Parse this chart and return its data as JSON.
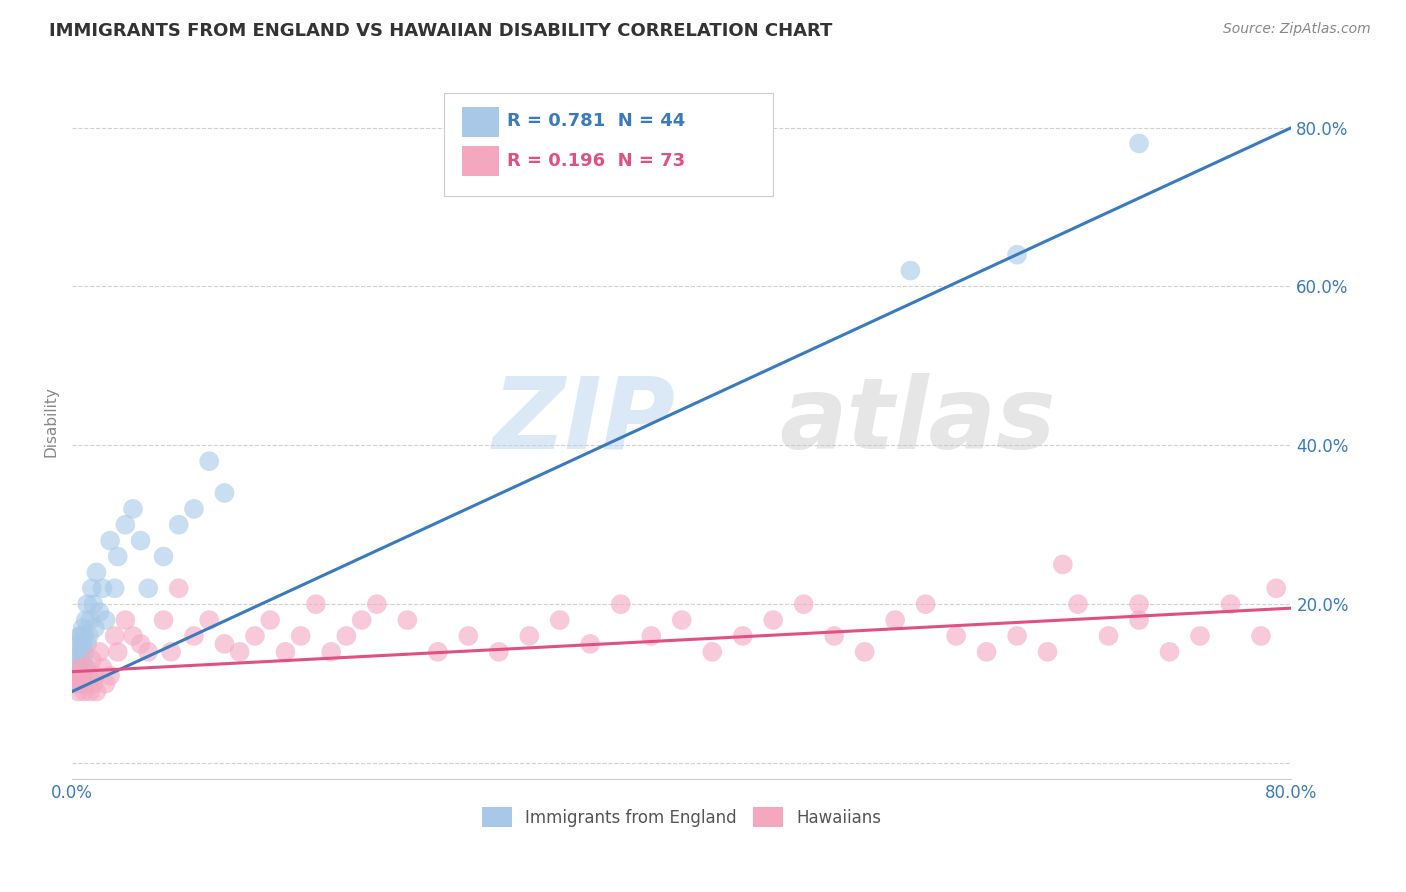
{
  "title": "IMMIGRANTS FROM ENGLAND VS HAWAIIAN DISABILITY CORRELATION CHART",
  "source": "Source: ZipAtlas.com",
  "ylabel": "Disability",
  "xlim": [
    0.0,
    0.8
  ],
  "ylim": [
    -0.02,
    0.88
  ],
  "blue_R": 0.781,
  "blue_N": 44,
  "pink_R": 0.196,
  "pink_N": 73,
  "blue_color": "#a8c8e8",
  "pink_color": "#f4a8c0",
  "blue_line_color": "#3a7abf",
  "pink_line_color": "#e05080",
  "blue_scatter_x": [
    0.002,
    0.003,
    0.003,
    0.004,
    0.004,
    0.005,
    0.005,
    0.005,
    0.006,
    0.006,
    0.006,
    0.007,
    0.007,
    0.007,
    0.008,
    0.008,
    0.009,
    0.009,
    0.01,
    0.01,
    0.011,
    0.012,
    0.013,
    0.014,
    0.015,
    0.016,
    0.018,
    0.02,
    0.022,
    0.025,
    0.028,
    0.03,
    0.035,
    0.04,
    0.045,
    0.05,
    0.06,
    0.07,
    0.08,
    0.09,
    0.1,
    0.55,
    0.62,
    0.7
  ],
  "blue_scatter_y": [
    0.1,
    0.12,
    0.14,
    0.11,
    0.15,
    0.13,
    0.16,
    0.1,
    0.12,
    0.14,
    0.16,
    0.13,
    0.15,
    0.17,
    0.14,
    0.16,
    0.12,
    0.18,
    0.15,
    0.2,
    0.16,
    0.18,
    0.22,
    0.2,
    0.17,
    0.24,
    0.19,
    0.22,
    0.18,
    0.28,
    0.22,
    0.26,
    0.3,
    0.32,
    0.28,
    0.22,
    0.26,
    0.3,
    0.32,
    0.38,
    0.34,
    0.62,
    0.64,
    0.78
  ],
  "pink_scatter_x": [
    0.002,
    0.003,
    0.004,
    0.005,
    0.006,
    0.007,
    0.008,
    0.009,
    0.01,
    0.011,
    0.012,
    0.013,
    0.014,
    0.015,
    0.016,
    0.018,
    0.02,
    0.022,
    0.025,
    0.028,
    0.03,
    0.035,
    0.04,
    0.045,
    0.05,
    0.06,
    0.065,
    0.07,
    0.08,
    0.09,
    0.1,
    0.11,
    0.12,
    0.13,
    0.14,
    0.15,
    0.16,
    0.17,
    0.18,
    0.19,
    0.2,
    0.22,
    0.24,
    0.26,
    0.28,
    0.3,
    0.32,
    0.34,
    0.36,
    0.38,
    0.4,
    0.42,
    0.44,
    0.46,
    0.48,
    0.5,
    0.52,
    0.54,
    0.56,
    0.58,
    0.6,
    0.62,
    0.64,
    0.66,
    0.68,
    0.7,
    0.72,
    0.74,
    0.76,
    0.78,
    0.79,
    0.65,
    0.7
  ],
  "pink_scatter_y": [
    0.1,
    0.11,
    0.09,
    0.12,
    0.1,
    0.11,
    0.09,
    0.12,
    0.1,
    0.11,
    0.09,
    0.13,
    0.1,
    0.11,
    0.09,
    0.14,
    0.12,
    0.1,
    0.11,
    0.16,
    0.14,
    0.18,
    0.16,
    0.15,
    0.14,
    0.18,
    0.14,
    0.22,
    0.16,
    0.18,
    0.15,
    0.14,
    0.16,
    0.18,
    0.14,
    0.16,
    0.2,
    0.14,
    0.16,
    0.18,
    0.2,
    0.18,
    0.14,
    0.16,
    0.14,
    0.16,
    0.18,
    0.15,
    0.2,
    0.16,
    0.18,
    0.14,
    0.16,
    0.18,
    0.2,
    0.16,
    0.14,
    0.18,
    0.2,
    0.16,
    0.14,
    0.16,
    0.14,
    0.2,
    0.16,
    0.18,
    0.14,
    0.16,
    0.2,
    0.16,
    0.22,
    0.25,
    0.2
  ],
  "blue_line_x0": 0.0,
  "blue_line_y0": 0.09,
  "blue_line_x1": 0.8,
  "blue_line_y1": 0.8,
  "pink_line_x0": 0.0,
  "pink_line_y0": 0.115,
  "pink_line_x1": 0.8,
  "pink_line_y1": 0.195
}
